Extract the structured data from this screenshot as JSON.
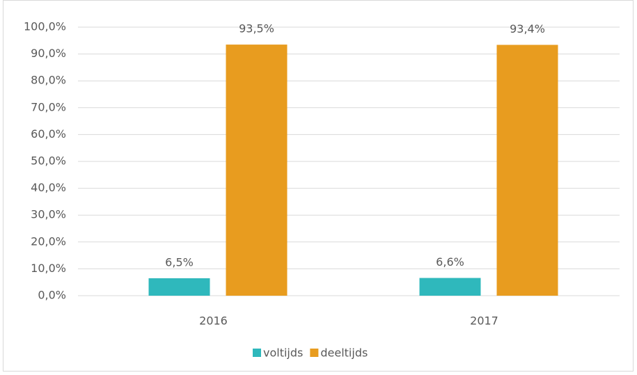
{
  "chart_data": {
    "type": "bar",
    "categories": [
      "2016",
      "2017"
    ],
    "series": [
      {
        "name": "voltijds",
        "color": "#2fb8bc",
        "values": [
          6.5,
          6.6
        ],
        "value_labels": [
          "6,5%",
          "6,6%"
        ]
      },
      {
        "name": "deeltijds",
        "color": "#e89c1f",
        "values": [
          93.5,
          93.4
        ],
        "value_labels": [
          "93,5%",
          "93,4%"
        ]
      }
    ],
    "ylim": [
      0,
      100
    ],
    "yticks": [
      {
        "value": 0,
        "label": "0,0%"
      },
      {
        "value": 10,
        "label": "10,0%"
      },
      {
        "value": 20,
        "label": "20,0%"
      },
      {
        "value": 30,
        "label": "30,0%"
      },
      {
        "value": 40,
        "label": "40,0%"
      },
      {
        "value": 50,
        "label": "50,0%"
      },
      {
        "value": 60,
        "label": "60,0%"
      },
      {
        "value": 70,
        "label": "70,0%"
      },
      {
        "value": 80,
        "label": "80,0%"
      },
      {
        "value": 90,
        "label": "90,0%"
      },
      {
        "value": 100,
        "label": "100,0%"
      }
    ],
    "grid": true,
    "legend": "bottom"
  }
}
